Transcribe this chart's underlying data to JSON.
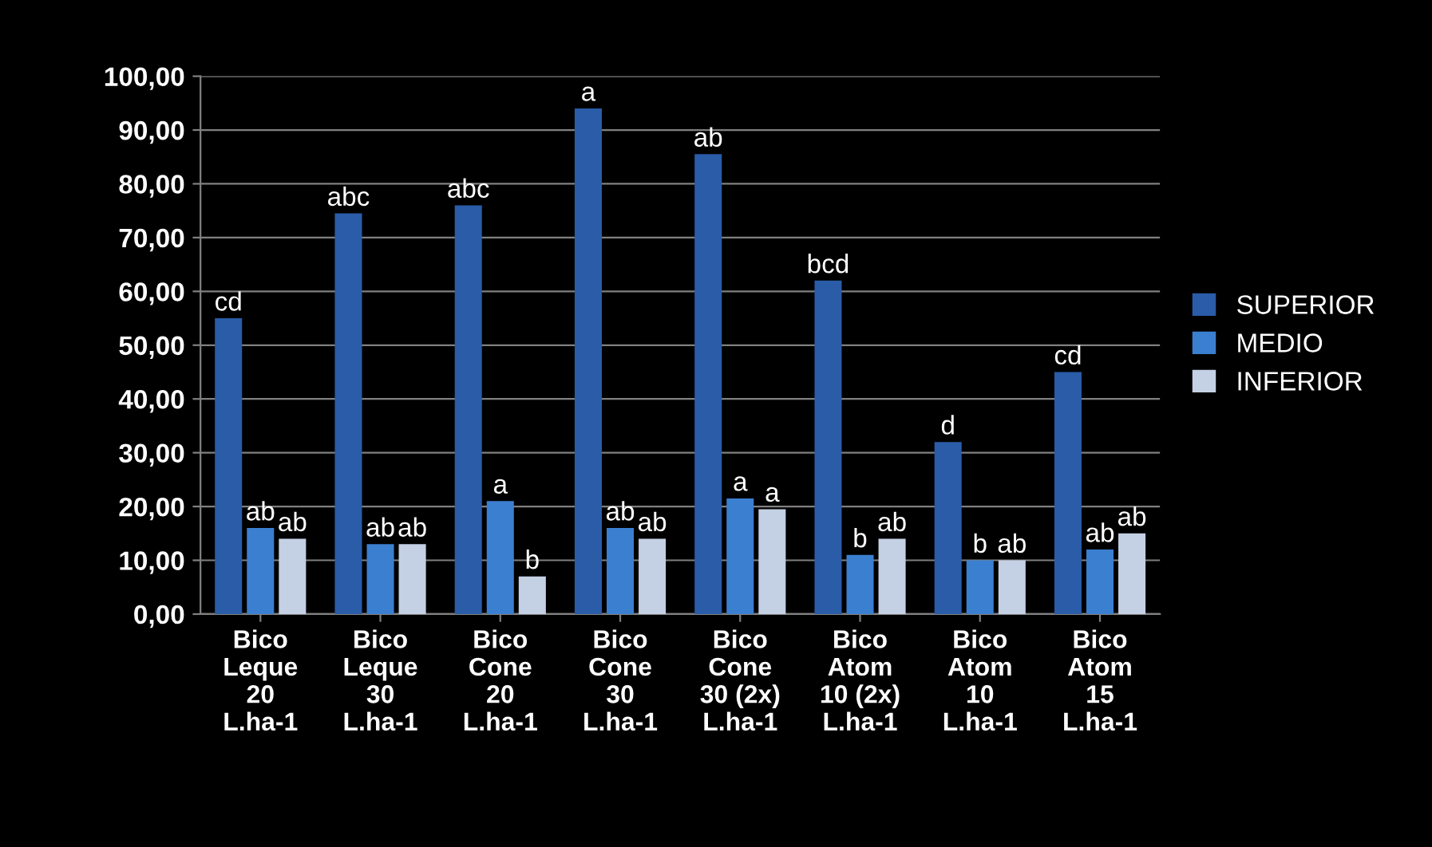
{
  "chart_data": {
    "type": "bar",
    "categories": [
      "Bico\nLeque\n20\nL.ha-1",
      "Bico\nLeque\n30\nL.ha-1",
      "Bico\nCone\n20\nL.ha-1",
      "Bico\nCone\n30\nL.ha-1",
      "Bico\nCone\n30 (2x)\nL.ha-1",
      "Bico\nAtom\n10 (2x)\nL.ha-1",
      "Bico\nAtom\n10\nL.ha-1",
      "Bico\nAtom\n15\nL.ha-1"
    ],
    "series": [
      {
        "name": "SUPERIOR",
        "color": "#2a5ca8",
        "values": [
          55,
          74.5,
          76,
          94,
          85.5,
          62,
          32,
          45
        ],
        "value_labels": [
          "cd",
          "abc",
          "abc",
          "a",
          "ab",
          "bcd",
          "d",
          "cd"
        ]
      },
      {
        "name": "MEDIO",
        "color": "#3b7fd0",
        "values": [
          16,
          13,
          21,
          16,
          21.5,
          11,
          10,
          12
        ],
        "value_labels": [
          "ab",
          "ab",
          "a",
          "ab",
          "a",
          "b",
          "b",
          "ab"
        ]
      },
      {
        "name": "INFERIOR",
        "color": "#c4d0e4",
        "values": [
          14,
          13,
          7,
          14,
          19.5,
          14,
          10,
          15
        ],
        "value_labels": [
          "ab",
          "ab",
          "b",
          "ab",
          "a",
          "ab",
          "ab",
          "ab"
        ]
      }
    ],
    "ylim": [
      0,
      100
    ],
    "yticks": [
      {
        "value": 0,
        "label": "0,00"
      },
      {
        "value": 10,
        "label": "10,00"
      },
      {
        "value": 20,
        "label": "20,00"
      },
      {
        "value": 30,
        "label": "30,00"
      },
      {
        "value": 40,
        "label": "40,00"
      },
      {
        "value": 50,
        "label": "50,00"
      },
      {
        "value": 60,
        "label": "60,00"
      },
      {
        "value": 70,
        "label": "70,00"
      },
      {
        "value": 80,
        "label": "80,00"
      },
      {
        "value": 90,
        "label": "90,00"
      },
      {
        "value": 100,
        "label": "100,00"
      }
    ],
    "grid": "y",
    "legend": "right"
  }
}
